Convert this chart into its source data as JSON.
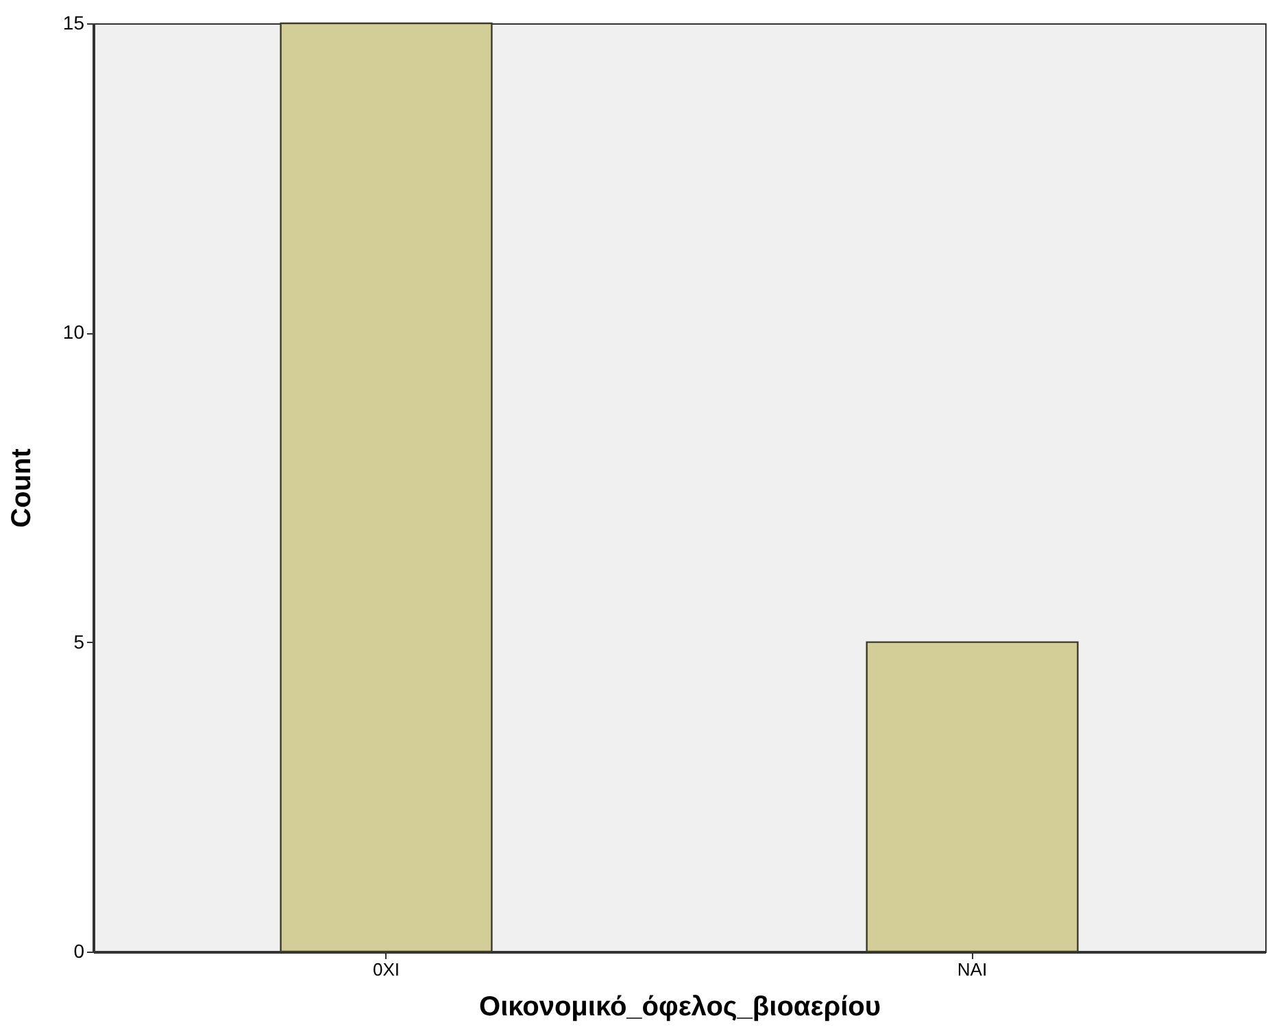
{
  "chart_data": {
    "type": "bar",
    "categories": [
      "0XI",
      "NAI"
    ],
    "values": [
      15,
      5
    ],
    "color": "#d3ce97",
    "xlabel": "Οικονομικό_όφελος_βιοαερίου",
    "ylabel": "Count",
    "ylim": [
      0,
      15
    ],
    "yticks": [
      0,
      5,
      10,
      15
    ],
    "grid": false
  }
}
